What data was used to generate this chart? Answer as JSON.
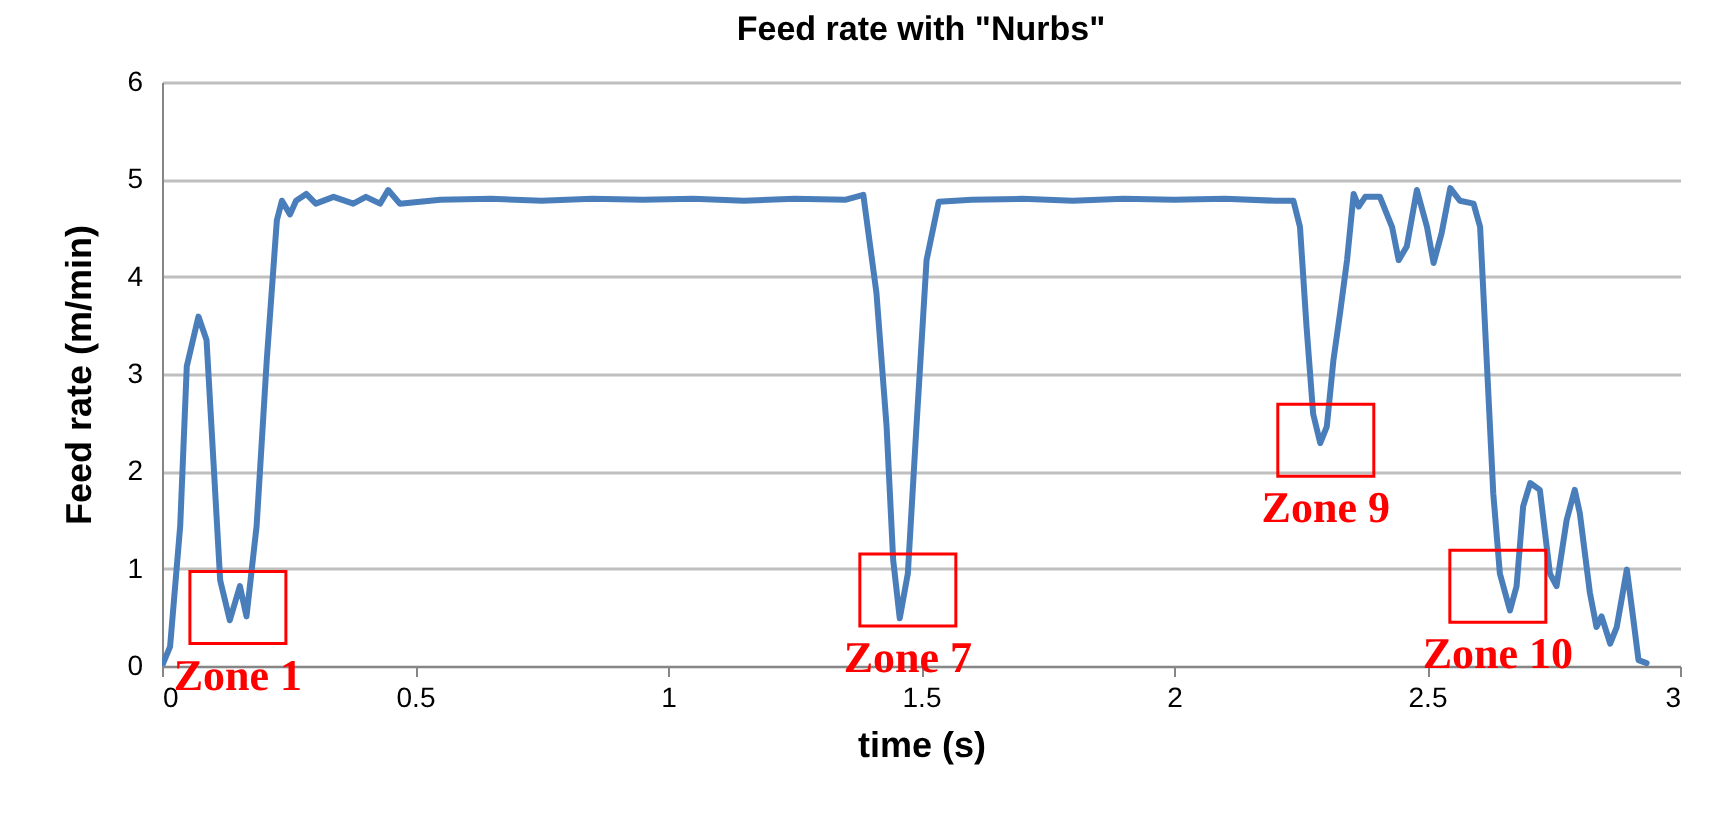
{
  "chart_data": {
    "type": "line",
    "title": "Feed rate with \"Nurbs\"",
    "xlabel": "time (s)",
    "ylabel": "Feed rate (m/min)",
    "xlim": [
      0,
      3
    ],
    "xticks": [
      0,
      0.5,
      1,
      1.5,
      2,
      2.5,
      3
    ],
    "ylim": [
      0,
      6
    ],
    "yticks": [
      0,
      1,
      2,
      3,
      4,
      5,
      6
    ],
    "grid": "y",
    "legend": false,
    "marker": "none",
    "line_style": "solid",
    "annotations": [
      {
        "text": "Zone 1",
        "x": 0.15,
        "y": 0.6
      },
      {
        "text": "Zone 7",
        "x": 1.474,
        "y": 0.78
      },
      {
        "text": "Zone 9",
        "x": 2.3,
        "y": 2.32
      },
      {
        "text": "Zone 10",
        "x": 2.64,
        "y": 0.82
      }
    ],
    "series": [
      {
        "color": "#4a7ebb",
        "x": [
          0,
          0.016,
          0.036,
          0.049,
          0.072,
          0.088,
          0.115,
          0.134,
          0.154,
          0.167,
          0.187,
          0.207,
          0.227,
          0.237,
          0.253,
          0.265,
          0.285,
          0.304,
          0.339,
          0.378,
          0.403,
          0.431,
          0.447,
          0.47,
          0.55,
          0.65,
          0.75,
          0.85,
          0.95,
          1.05,
          1.15,
          1.25,
          1.35,
          1.386,
          1.412,
          1.432,
          1.445,
          1.458,
          1.474,
          1.491,
          1.511,
          1.535,
          1.6,
          1.7,
          1.8,
          1.9,
          2.0,
          2.1,
          2.2,
          2.236,
          2.249,
          2.262,
          2.275,
          2.289,
          2.302,
          2.315,
          2.328,
          2.342,
          2.355,
          2.365,
          2.378,
          2.407,
          2.431,
          2.444,
          2.46,
          2.48,
          2.5,
          2.513,
          2.529,
          2.546,
          2.565,
          2.592,
          2.605,
          2.618,
          2.631,
          2.644,
          2.664,
          2.677,
          2.69,
          2.704,
          2.723,
          2.743,
          2.756,
          2.776,
          2.792,
          2.802,
          2.822,
          2.835,
          2.845,
          2.862,
          2.875,
          2.895,
          2.908,
          2.918,
          2.934
        ],
        "values": [
          0,
          0.2,
          1.44,
          3.08,
          3.59,
          3.35,
          0.88,
          0.47,
          0.82,
          0.51,
          1.44,
          3.14,
          4.58,
          4.78,
          4.64,
          4.78,
          4.85,
          4.75,
          4.82,
          4.75,
          4.82,
          4.75,
          4.89,
          4.75,
          4.79,
          4.8,
          4.78,
          4.8,
          4.79,
          4.8,
          4.78,
          4.8,
          4.79,
          4.84,
          3.83,
          2.46,
          1.09,
          0.49,
          0.95,
          2.46,
          4.17,
          4.77,
          4.79,
          4.8,
          4.78,
          4.8,
          4.79,
          4.8,
          4.78,
          4.78,
          4.51,
          3.48,
          2.59,
          2.29,
          2.46,
          3.14,
          3.62,
          4.17,
          4.85,
          4.72,
          4.82,
          4.82,
          4.51,
          4.17,
          4.31,
          4.89,
          4.51,
          4.14,
          4.45,
          4.91,
          4.78,
          4.75,
          4.51,
          3.14,
          1.77,
          0.95,
          0.57,
          0.82,
          1.64,
          1.88,
          1.81,
          0.95,
          0.82,
          1.5,
          1.81,
          1.57,
          0.75,
          0.4,
          0.51,
          0.23,
          0.4,
          0.99,
          0.47,
          0.06,
          0.03
        ]
      }
    ]
  }
}
